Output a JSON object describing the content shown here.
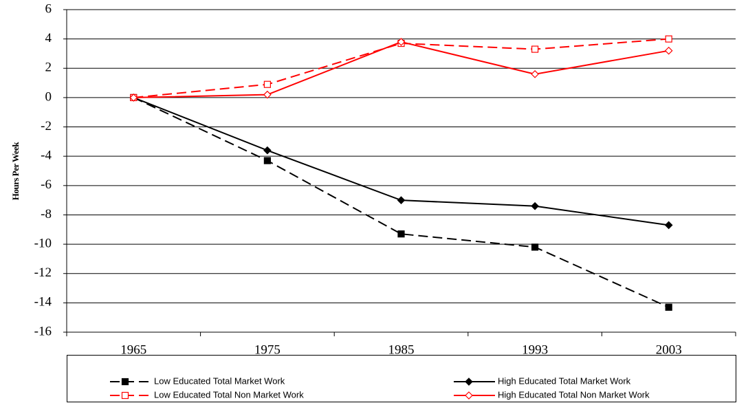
{
  "chart_data": {
    "type": "line",
    "y_label": "Hours Per Week",
    "categories": [
      "1965",
      "1975",
      "1985",
      "1993",
      "2003"
    ],
    "ylim": [
      -16,
      6
    ],
    "yticks": [
      -16,
      -14,
      -12,
      -10,
      -8,
      -6,
      -4,
      -2,
      0,
      2,
      4,
      6
    ],
    "grid": true,
    "series": [
      {
        "name": "Low Educated Total Market Work",
        "color": "#000000",
        "dashed": true,
        "marker": "square",
        "marker_filled": true,
        "values": [
          0,
          -4.3,
          -9.3,
          -10.2,
          -14.3
        ]
      },
      {
        "name": "High Educated Total Market Work",
        "color": "#000000",
        "dashed": false,
        "marker": "diamond",
        "marker_filled": true,
        "values": [
          0,
          -3.6,
          -7.0,
          -7.4,
          -8.7
        ]
      },
      {
        "name": "Low Educated Total Non Market Work",
        "color": "#ff0000",
        "dashed": true,
        "marker": "square",
        "marker_filled": false,
        "values": [
          0,
          0.9,
          3.7,
          3.3,
          4.0
        ]
      },
      {
        "name": "High Educated Total Non Market Work",
        "color": "#ff0000",
        "dashed": false,
        "marker": "diamond",
        "marker_filled": false,
        "values": [
          0,
          0.2,
          3.8,
          1.6,
          3.2
        ]
      }
    ]
  }
}
